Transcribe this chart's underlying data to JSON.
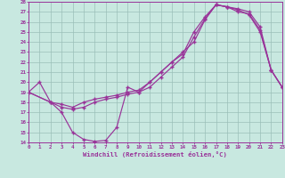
{
  "bg_color": "#c8e8e0",
  "line_color": "#993399",
  "grid_color": "#9bbfb8",
  "xlim": [
    0,
    23
  ],
  "ylim": [
    14,
    28
  ],
  "xticks": [
    0,
    1,
    2,
    3,
    4,
    5,
    6,
    7,
    8,
    9,
    10,
    11,
    12,
    13,
    14,
    15,
    16,
    17,
    18,
    19,
    20,
    21,
    22,
    23
  ],
  "yticks": [
    14,
    15,
    16,
    17,
    18,
    19,
    20,
    21,
    22,
    23,
    24,
    25,
    26,
    27,
    28
  ],
  "xlabel": "Windchill (Refroidissement éolien,°C)",
  "line1_x": [
    0,
    1,
    2,
    3,
    4,
    5,
    6,
    7,
    8,
    9,
    10,
    11,
    12,
    13,
    14,
    15,
    16,
    17,
    18,
    19,
    20,
    21,
    22,
    23
  ],
  "line1_y": [
    19,
    20,
    18,
    17,
    15,
    14.3,
    14.1,
    14.2,
    15.5,
    19.5,
    19.0,
    20.0,
    21.0,
    22.0,
    23.0,
    24.0,
    26.2,
    27.7,
    27.5,
    27.2,
    26.7,
    25.0,
    21.2,
    19.5
  ],
  "line2_x": [
    0,
    2,
    3,
    4,
    5,
    6,
    7,
    8,
    9,
    10,
    11,
    12,
    13,
    14,
    15,
    16,
    17,
    18,
    19,
    20,
    21,
    22,
    23
  ],
  "line2_y": [
    19,
    18,
    17.8,
    17.5,
    18.0,
    18.3,
    18.5,
    18.7,
    19.0,
    19.2,
    20.0,
    21.0,
    22.0,
    22.8,
    25.0,
    26.5,
    27.7,
    27.5,
    27.0,
    26.8,
    25.2,
    21.2,
    19.5
  ],
  "line3_x": [
    0,
    2,
    3,
    4,
    5,
    6,
    7,
    8,
    9,
    10,
    11,
    12,
    13,
    14,
    15,
    16,
    17,
    18,
    19,
    20,
    21,
    22,
    23
  ],
  "line3_y": [
    19,
    18,
    17.5,
    17.3,
    17.5,
    18.0,
    18.3,
    18.5,
    18.8,
    19.0,
    19.5,
    20.5,
    21.5,
    22.5,
    24.5,
    26.3,
    27.7,
    27.5,
    27.3,
    27.0,
    25.5,
    21.2,
    19.5
  ]
}
